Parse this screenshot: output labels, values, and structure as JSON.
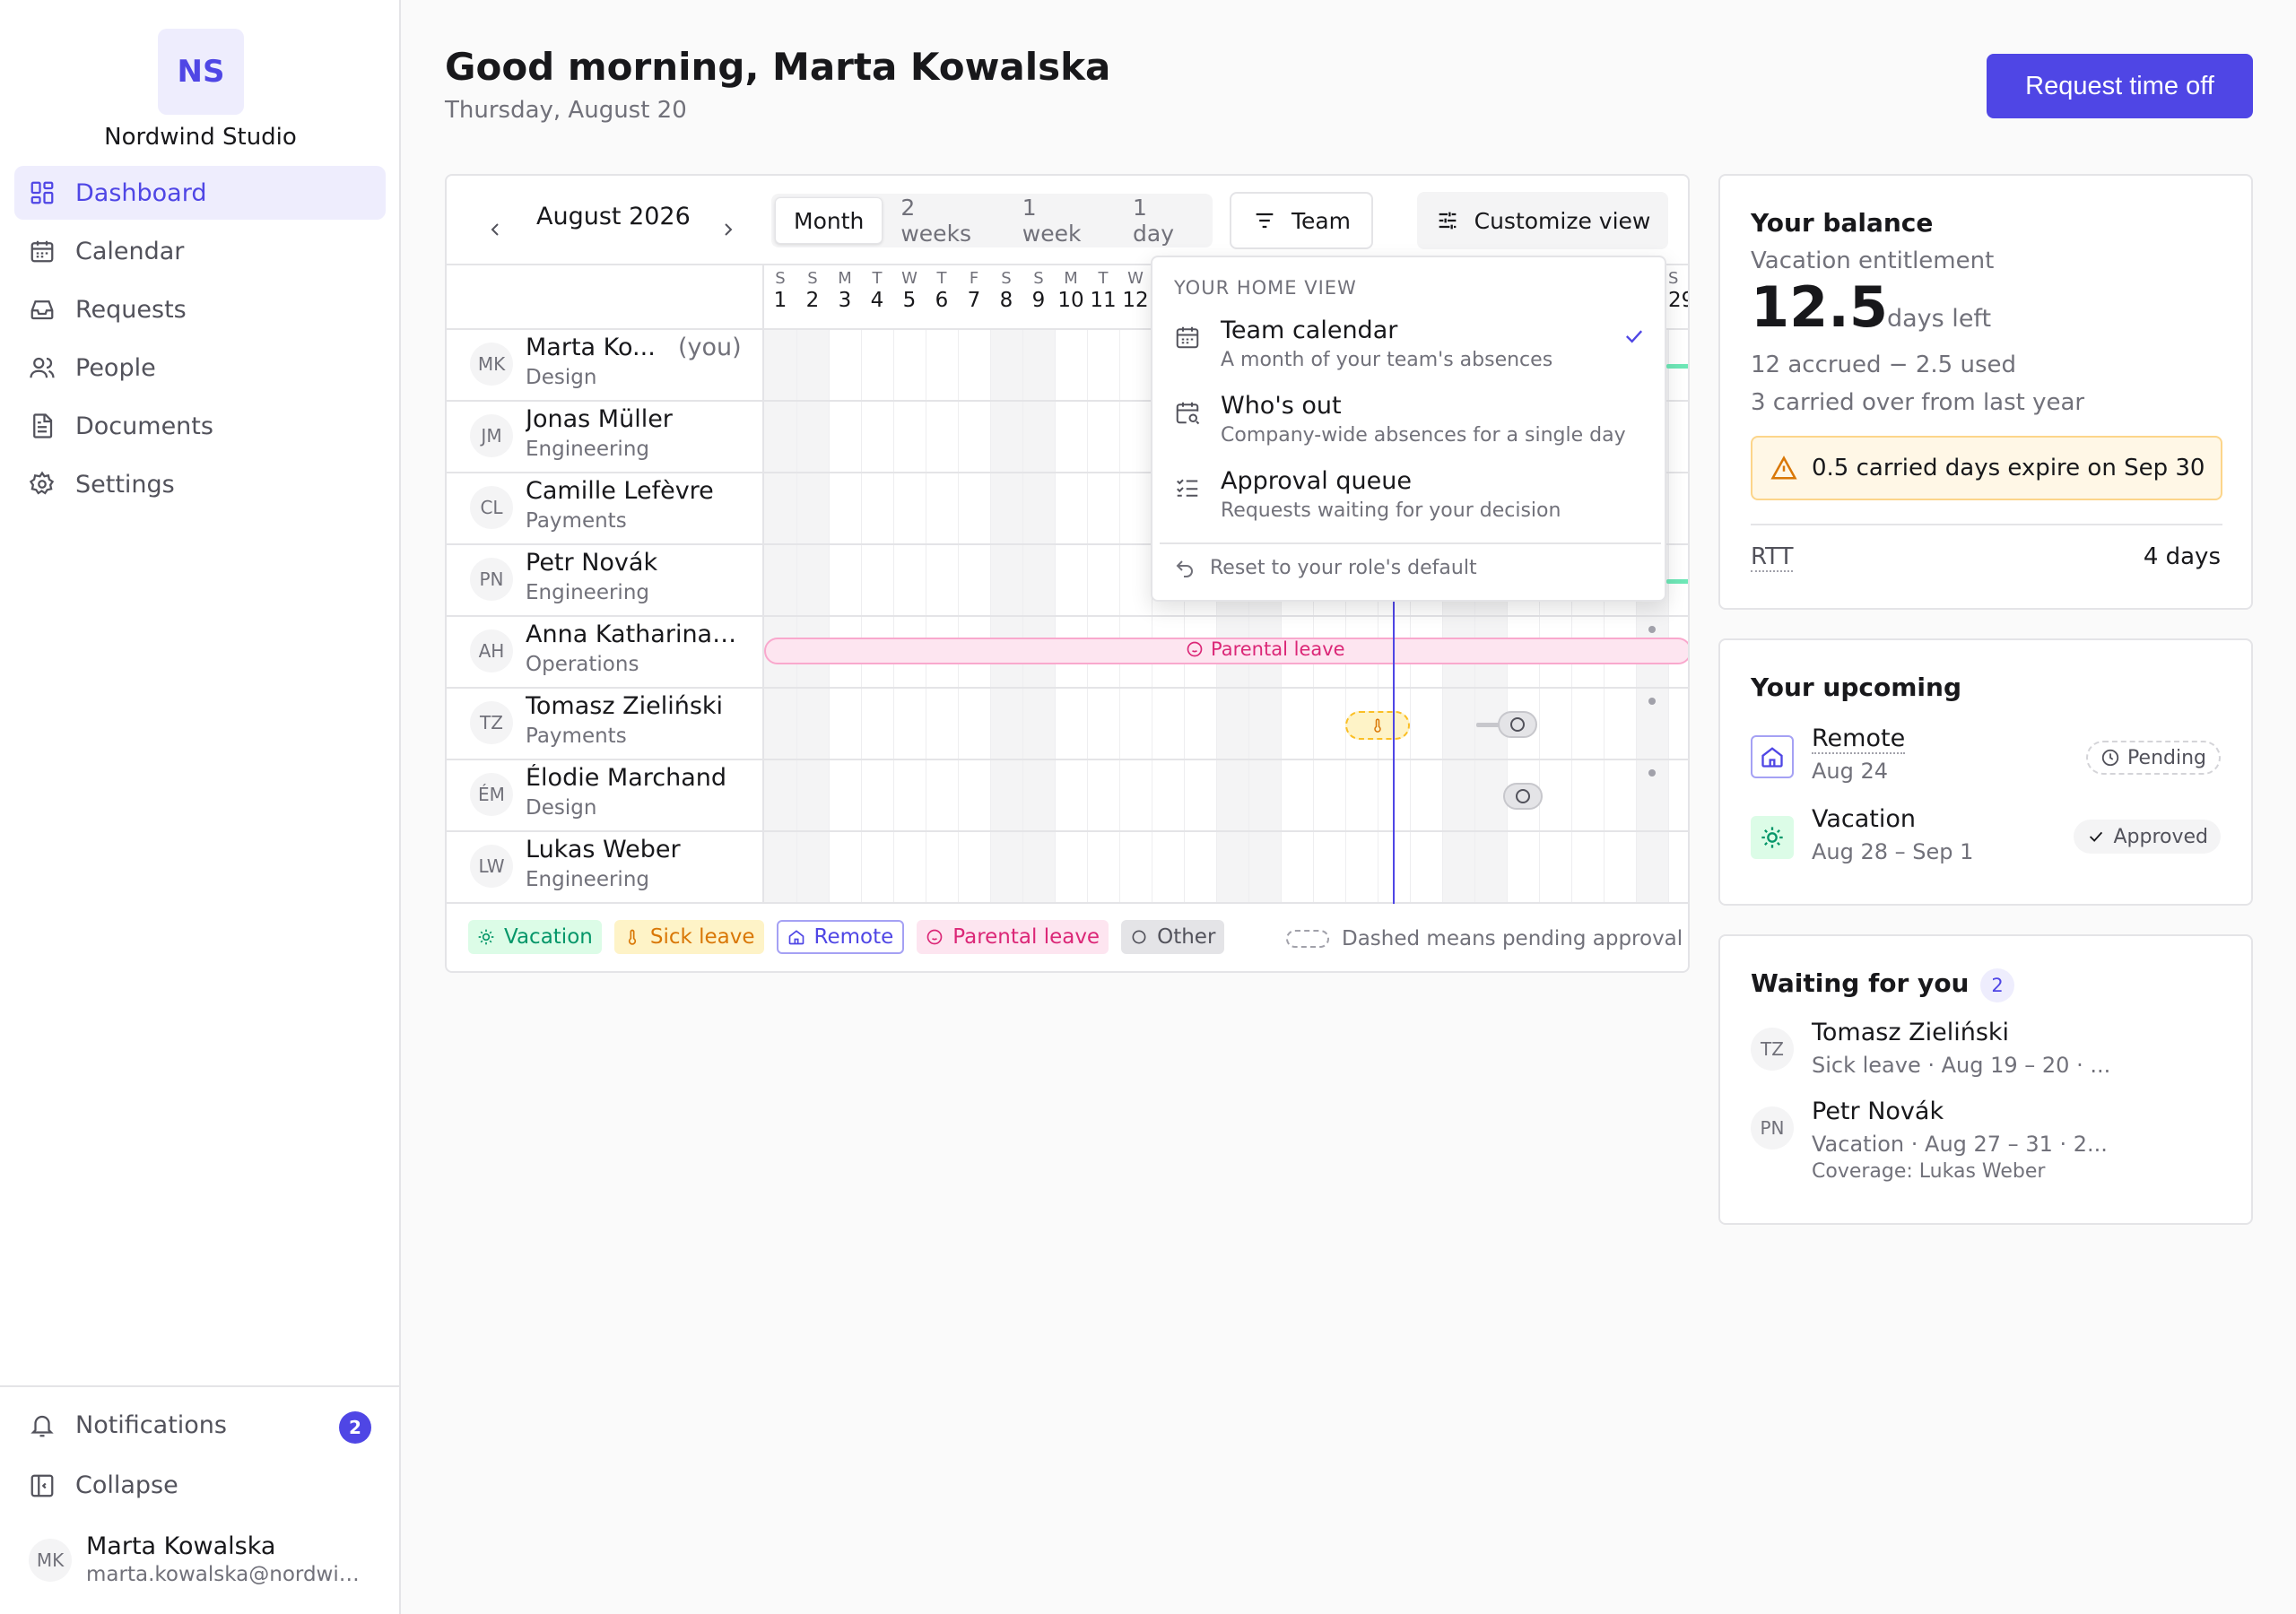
{
  "workspace": {
    "initials": "NS",
    "name": "Nordwind Studio"
  },
  "nav": [
    {
      "label": "Dashboard",
      "icon": "dashboard-icon",
      "active": true
    },
    {
      "label": "Calendar",
      "icon": "calendar-icon"
    },
    {
      "label": "Requests",
      "icon": "inbox-icon"
    },
    {
      "label": "People",
      "icon": "people-icon"
    },
    {
      "label": "Documents",
      "icon": "document-icon"
    },
    {
      "label": "Settings",
      "icon": "gear-icon"
    }
  ],
  "sidebar_bottom": {
    "notifications_label": "Notifications",
    "notifications_count": "2",
    "collapse_label": "Collapse",
    "user_initials": "MK",
    "user_name": "Marta Kowalska",
    "user_email": "marta.kowalska@nordwin..."
  },
  "header": {
    "greeting": "Good morning, Marta Kowalska",
    "date": "Thursday, August 20",
    "request_button": "Request time off"
  },
  "calendar": {
    "month_label": "August 2026",
    "views": [
      "Month",
      "2 weeks",
      "1 week",
      "1 day"
    ],
    "active_view": "Month",
    "team_button": "Team",
    "customize_button": "Customize view",
    "days": [
      {
        "l": "S",
        "n": "1"
      },
      {
        "l": "S",
        "n": "2"
      },
      {
        "l": "M",
        "n": "3"
      },
      {
        "l": "T",
        "n": "4"
      },
      {
        "l": "W",
        "n": "5"
      },
      {
        "l": "T",
        "n": "6"
      },
      {
        "l": "F",
        "n": "7"
      },
      {
        "l": "S",
        "n": "8"
      },
      {
        "l": "S",
        "n": "9"
      },
      {
        "l": "M",
        "n": "10"
      },
      {
        "l": "T",
        "n": "11"
      },
      {
        "l": "W",
        "n": "12"
      }
    ],
    "partial_day": {
      "l": "S",
      "n": "29"
    },
    "people": [
      {
        "initials": "MK",
        "name": "Marta Ko...",
        "you": "(you)",
        "team": "Design"
      },
      {
        "initials": "JM",
        "name": "Jonas Müller",
        "team": "Engineering"
      },
      {
        "initials": "CL",
        "name": "Camille Lefèvre",
        "team": "Payments"
      },
      {
        "initials": "PN",
        "name": "Petr Novák",
        "team": "Engineering"
      },
      {
        "initials": "AH",
        "name": "Anna Katharina ...",
        "team": "Operations"
      },
      {
        "initials": "TZ",
        "name": "Tomasz Zieliński",
        "team": "Payments"
      },
      {
        "initials": "ÉM",
        "name": "Élodie Marchand",
        "team": "Design"
      },
      {
        "initials": "LW",
        "name": "Lukas Weber",
        "team": "Engineering"
      }
    ],
    "parental_bar_label": "Parental leave",
    "legend": [
      "Vacation",
      "Sick leave",
      "Remote",
      "Parental leave",
      "Other"
    ],
    "legend_note": "Dashed means pending approval"
  },
  "home_view_menu": {
    "heading": "YOUR HOME VIEW",
    "items": [
      {
        "title": "Team calendar",
        "sub": "A month of your team's absences",
        "checked": true
      },
      {
        "title": "Who's out",
        "sub": "Company-wide absences for a single day"
      },
      {
        "title": "Approval queue",
        "sub": "Requests waiting for your decision"
      }
    ],
    "reset": "Reset to your role's default"
  },
  "balance": {
    "title": "Your balance",
    "subtitle": "Vacation entitlement",
    "value": "12.5",
    "unit": "days left",
    "line1": "12 accrued − 2.5 used",
    "line2": "3 carried over from last year",
    "warning": "0.5 carried days expire on Sep 30",
    "rtt_label": "RTT",
    "rtt_value": "4 days"
  },
  "upcoming": {
    "title": "Your upcoming",
    "items": [
      {
        "name": "Remote",
        "date": "Aug 24",
        "status": "Pending"
      },
      {
        "name": "Vacation",
        "date": "Aug 28 – Sep 1",
        "status": "Approved"
      }
    ]
  },
  "waiting": {
    "title": "Waiting for you",
    "count": "2",
    "items": [
      {
        "initials": "TZ",
        "name": "Tomasz Zieliński",
        "detail": "Sick leave · Aug 19 – 20 · ..."
      },
      {
        "initials": "PN",
        "name": "Petr Novák",
        "detail": "Vacation · Aug 27 – 31 · 2...",
        "coverage": "Coverage: Lukas Weber"
      }
    ]
  },
  "colors": {
    "accent": "#4f46e5",
    "vacation": "#059669",
    "sick": "#d97706",
    "parental": "#db2777",
    "other": "#52525b"
  }
}
